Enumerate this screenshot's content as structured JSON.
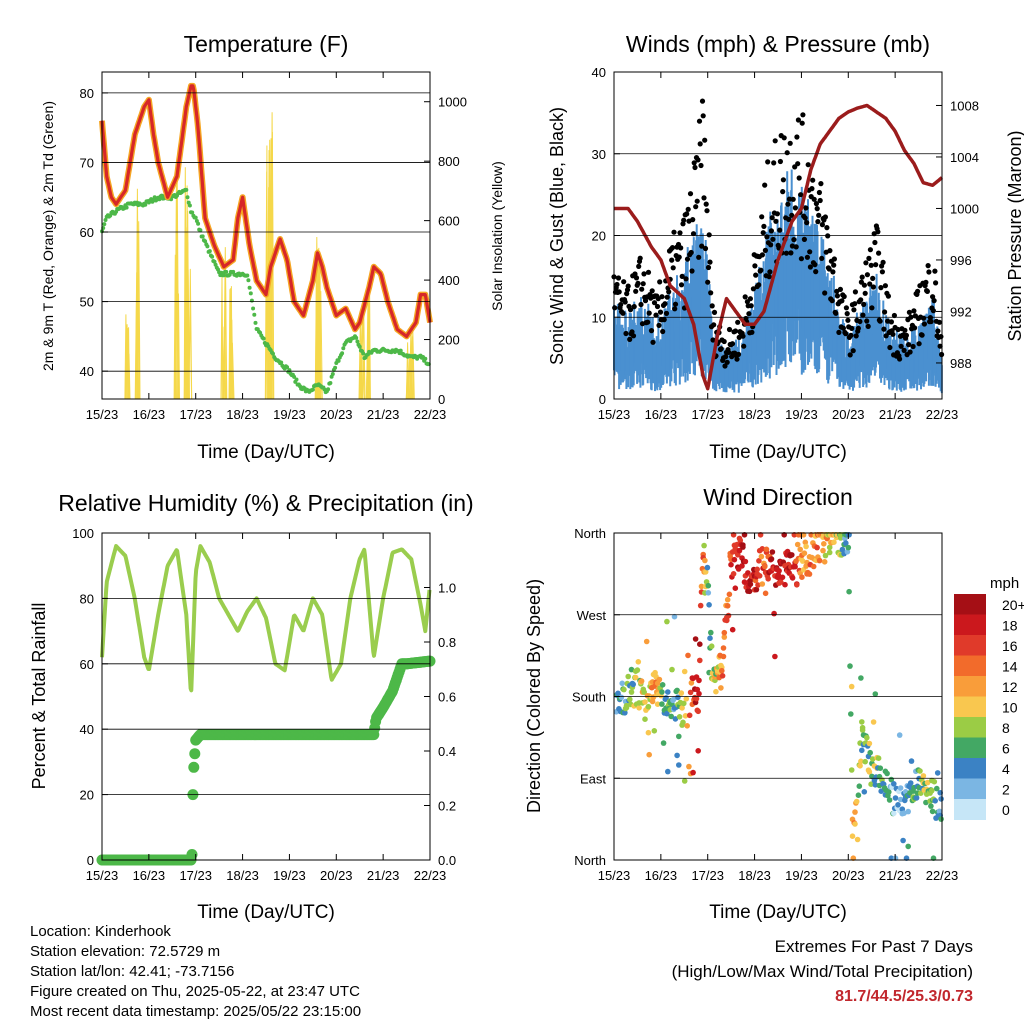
{
  "panels": {
    "temperature": {
      "title": "Temperature (F)",
      "ylabel_left": "2m & 9m T (Red, Orange) & 2m Td (Green)",
      "ylabel_right": "Solar Insolation (Yellow)",
      "xlabel": "Time (Day/UTC)"
    },
    "winds": {
      "title": "Winds (mph) & Pressure (mb)",
      "ylabel_left": "Sonic Wind & Gust (Blue, Black)",
      "ylabel_right": "Station Pressure (Maroon)",
      "xlabel": "Time (Day/UTC)"
    },
    "humidity": {
      "title": "Relative Humidity (%) & Precipitation (in)",
      "ylabel_left": "Percent & Total Rainfall",
      "xlabel": "Time (Day/UTC)"
    },
    "direction": {
      "title": "Wind Direction",
      "ylabel_left": "Direction (Colored By Speed)",
      "xlabel": "Time (Day/UTC)",
      "colorbar_title": "mph"
    }
  },
  "info": {
    "location": "Location: Kinderhook",
    "elevation": "Station elevation: 72.5729 m",
    "latlon": "Station lat/lon: 42.41; -73.7156",
    "created": "Figure created on Thu, 2025-05-22, at 23:47 UTC",
    "latest": "Most recent data timestamp: 2025/05/22 23:15:00"
  },
  "extremes": {
    "line1": "Extremes For Past 7 Days",
    "line2": "(High/Low/Max Wind/Total Precipitation)",
    "values": "81.7/44.5/25.3/0.73"
  },
  "colors": {
    "temp_2m": "#d62728",
    "temp_9m": "#f5a623",
    "dewpoint": "#4db848",
    "solar": "#f5d84a",
    "wind": "#4a90d0",
    "gust": "#000000",
    "pressure": "#9b1c1c",
    "rh": "#9acd4e",
    "precip": "#4db848"
  },
  "chart_data": [
    {
      "id": "temperature",
      "type": "line",
      "title": "Temperature (F)",
      "xlabel": "Time (Day/UTC)",
      "x_ticks": [
        "15/23",
        "16/23",
        "17/23",
        "18/23",
        "19/23",
        "20/23",
        "21/23",
        "22/23"
      ],
      "xlim": [
        0,
        7
      ],
      "ylim_left": [
        36,
        83
      ],
      "yticks_left": [
        40,
        50,
        60,
        70,
        80
      ],
      "ylim_right": [
        0,
        1100
      ],
      "yticks_right": [
        0,
        200,
        400,
        600,
        800,
        1000
      ],
      "grid": true,
      "series": [
        {
          "name": "2m T",
          "axis": "left",
          "x": [
            0,
            0.1,
            0.2,
            0.3,
            0.5,
            0.7,
            0.9,
            1.0,
            1.1,
            1.2,
            1.4,
            1.6,
            1.8,
            1.9,
            1.95,
            2.05,
            2.2,
            2.4,
            2.6,
            2.8,
            2.9,
            3.0,
            3.15,
            3.3,
            3.5,
            3.6,
            3.8,
            3.95,
            4.1,
            4.3,
            4.5,
            4.6,
            4.7,
            4.8,
            5.0,
            5.2,
            5.4,
            5.5,
            5.7,
            5.8,
            5.95,
            6.1,
            6.3,
            6.5,
            6.7,
            6.8,
            6.9,
            7.0
          ],
          "values": [
            76,
            68,
            65,
            64,
            66,
            74,
            78,
            79,
            74,
            70,
            65,
            68,
            78,
            81,
            81,
            75,
            62,
            58,
            55,
            56,
            62,
            65,
            58,
            53,
            51,
            55,
            59,
            56,
            50,
            48,
            53,
            57,
            55,
            52,
            48,
            49,
            46,
            47,
            52,
            55,
            54,
            50,
            46,
            45,
            47,
            51,
            51,
            47
          ]
        },
        {
          "name": "Td",
          "axis": "left",
          "x": [
            0,
            0.1,
            0.3,
            0.6,
            0.9,
            1.2,
            1.5,
            1.8,
            1.9,
            2.0,
            2.1,
            2.3,
            2.5,
            2.8,
            3.1,
            3.3,
            3.5,
            3.7,
            4.0,
            4.2,
            4.4,
            4.6,
            4.8,
            5.0,
            5.2,
            5.4,
            5.6,
            5.8,
            6.0,
            6.3,
            6.6,
            6.8,
            7.0
          ],
          "values": [
            60,
            62,
            63,
            64,
            64,
            65,
            65,
            66,
            63,
            62,
            60,
            57,
            54,
            54,
            54,
            46,
            44,
            42,
            40,
            38,
            37,
            38,
            37,
            41,
            44,
            45,
            42,
            43,
            43,
            43,
            42,
            42,
            41
          ]
        },
        {
          "name": "Solar",
          "axis": "right",
          "type": "peaks",
          "peak_x": [
            0.55,
            0.75,
            1.6,
            1.8,
            1.85,
            2.6,
            2.75,
            3.55,
            3.6,
            4.6,
            4.65,
            5.55,
            5.7,
            6.55,
            6.6
          ],
          "peak_values": [
            300,
            750,
            920,
            830,
            720,
            550,
            400,
            900,
            1060,
            550,
            620,
            350,
            420,
            200,
            270
          ]
        }
      ]
    },
    {
      "id": "winds",
      "type": "scatter",
      "title": "Winds (mph) & Pressure (mb)",
      "xlabel": "Time (Day/UTC)",
      "x_ticks": [
        "15/23",
        "16/23",
        "17/23",
        "18/23",
        "19/23",
        "20/23",
        "21/23",
        "22/23"
      ],
      "xlim": [
        0,
        7
      ],
      "ylim_left": [
        0,
        40
      ],
      "yticks_left": [
        0,
        10,
        20,
        30,
        40
      ],
      "ylim_right": [
        985.2,
        1010.6
      ],
      "yticks_right": [
        988,
        992,
        996,
        1000,
        1004,
        1008
      ],
      "grid": true,
      "series": [
        {
          "name": "Wind",
          "x": [
            0,
            0.3,
            0.6,
            0.9,
            1.2,
            1.5,
            1.8,
            1.9,
            2.1,
            2.4,
            2.7,
            3.0,
            3.3,
            3.6,
            3.9,
            4.2,
            4.5,
            4.8,
            5.0,
            5.3,
            5.6,
            5.9,
            6.2,
            6.5,
            6.8,
            7.0
          ],
          "values": [
            8,
            7,
            9,
            6,
            10,
            12,
            17,
            18,
            6,
            4,
            5,
            10,
            16,
            20,
            21,
            18,
            14,
            8,
            5,
            8,
            11,
            6,
            5,
            7,
            10,
            3
          ]
        },
        {
          "name": "Gust",
          "x": [
            0,
            0.3,
            0.6,
            0.9,
            1.2,
            1.5,
            1.8,
            1.9,
            2.1,
            2.4,
            2.7,
            3.0,
            3.3,
            3.6,
            3.9,
            4.2,
            4.5,
            4.8,
            5.0,
            5.3,
            5.6,
            5.9,
            6.2,
            6.5,
            6.8,
            7.0
          ],
          "values": [
            14,
            12,
            16,
            11,
            17,
            20,
            28,
            35,
            10,
            7,
            9,
            16,
            26,
            30,
            32,
            28,
            22,
            14,
            9,
            14,
            19,
            10,
            8,
            12,
            17,
            6
          ]
        },
        {
          "name": "Pressure",
          "type": "line",
          "x": [
            0,
            0.3,
            0.5,
            0.8,
            1.0,
            1.2,
            1.5,
            1.7,
            1.9,
            2.0,
            2.2,
            2.4,
            2.6,
            2.8,
            3.0,
            3.2,
            3.5,
            3.8,
            4.0,
            4.2,
            4.4,
            4.6,
            4.8,
            5.0,
            5.2,
            5.4,
            5.6,
            5.8,
            6.0,
            6.2,
            6.4,
            6.6,
            6.8,
            7.0
          ],
          "values": [
            1000,
            1000,
            999,
            997,
            996,
            994,
            993,
            991,
            987,
            986,
            990,
            993,
            992,
            991,
            991,
            992,
            996,
            999,
            1000,
            1003,
            1005,
            1006,
            1007,
            1007.5,
            1007.8,
            1008,
            1007.5,
            1007,
            1006,
            1004.5,
            1003.5,
            1002,
            1001.8,
            1002.4
          ]
        }
      ]
    },
    {
      "id": "humidity",
      "type": "line",
      "title": "Relative Humidity (%) & Precipitation (in)",
      "xlabel": "Time (Day/UTC)",
      "x_ticks": [
        "15/23",
        "16/23",
        "17/23",
        "18/23",
        "19/23",
        "20/23",
        "21/23",
        "22/23"
      ],
      "xlim": [
        0,
        7
      ],
      "ylim_left": [
        0,
        100
      ],
      "yticks_left": [
        0,
        20,
        40,
        60,
        80,
        100
      ],
      "ylim_right": [
        0,
        1.2
      ],
      "yticks_right": [
        0.0,
        0.2,
        0.4,
        0.6,
        0.8,
        1.0
      ],
      "grid": true,
      "series": [
        {
          "name": "RH",
          "axis": "left",
          "x": [
            0,
            0.1,
            0.3,
            0.5,
            0.7,
            0.9,
            1.0,
            1.2,
            1.4,
            1.6,
            1.8,
            1.9,
            2.0,
            2.1,
            2.3,
            2.5,
            2.7,
            2.9,
            3.1,
            3.3,
            3.5,
            3.7,
            3.9,
            4.1,
            4.3,
            4.5,
            4.7,
            4.9,
            5.1,
            5.3,
            5.5,
            5.6,
            5.8,
            6.0,
            6.2,
            6.4,
            6.6,
            6.8,
            6.9,
            7.0
          ],
          "values": [
            62,
            85,
            96,
            93,
            80,
            62,
            58,
            75,
            90,
            95,
            75,
            50,
            88,
            96,
            91,
            80,
            75,
            70,
            76,
            80,
            74,
            60,
            58,
            75,
            70,
            80,
            75,
            55,
            60,
            80,
            92,
            95,
            62,
            80,
            94,
            95,
            92,
            78,
            70,
            84
          ]
        },
        {
          "name": "Precipitation",
          "axis": "right",
          "x": [
            0,
            1.9,
            1.92,
            1.94,
            1.96,
            2.0,
            2.1,
            3.0,
            4.0,
            5.0,
            5.8,
            5.85,
            6.0,
            6.2,
            6.4,
            6.5,
            7.0
          ],
          "values": [
            0,
            0,
            0.02,
            0.24,
            0.34,
            0.44,
            0.46,
            0.46,
            0.46,
            0.46,
            0.46,
            0.52,
            0.56,
            0.62,
            0.72,
            0.72,
            0.73
          ]
        }
      ]
    },
    {
      "id": "direction",
      "type": "scatter",
      "title": "Wind Direction",
      "xlabel": "Time (Day/UTC)",
      "x_ticks": [
        "15/23",
        "16/23",
        "17/23",
        "18/23",
        "19/23",
        "20/23",
        "21/23",
        "22/23"
      ],
      "xlim": [
        0,
        7
      ],
      "ylim": [
        0,
        360
      ],
      "yticks": [
        0,
        90,
        180,
        270,
        360
      ],
      "ytick_labels": [
        "North",
        "East",
        "South",
        "West",
        "North"
      ],
      "grid": true,
      "colorbar": {
        "title": "mph",
        "labels": [
          "20+",
          "18",
          "16",
          "14",
          "12",
          "10",
          "8",
          "6",
          "4",
          "2",
          "0"
        ],
        "colors": [
          "#a50f15",
          "#cb181d",
          "#e03a2a",
          "#f26b2b",
          "#f99d3a",
          "#f9c74f",
          "#9bcc45",
          "#43a864",
          "#3b82c4",
          "#7bb6e3",
          "#c6e6f7"
        ]
      },
      "series": [
        {
          "name": "Direction",
          "x": [
            0.1,
            0.3,
            0.5,
            0.7,
            0.9,
            1.1,
            1.3,
            1.5,
            1.7,
            1.8,
            1.9,
            2.0,
            2.1,
            2.3,
            2.5,
            2.7,
            2.9,
            3.0,
            3.1,
            3.3,
            3.5,
            3.7,
            3.9,
            4.0,
            4.2,
            4.4,
            4.6,
            4.8,
            5.0,
            5.1,
            5.3,
            5.5,
            5.7,
            5.9,
            6.1,
            6.3,
            6.5,
            6.7,
            6.9
          ],
          "values": [
            175,
            185,
            190,
            170,
            195,
            180,
            175,
            160,
            185,
            180,
            345,
            300,
            200,
            210,
            330,
            340,
            305,
            310,
            320,
            330,
            315,
            320,
            320,
            330,
            335,
            350,
            355,
            355,
            355,
            10,
            140,
            100,
            90,
            70,
            60,
            70,
            90,
            80,
            60
          ],
          "speeds": [
            4,
            6,
            8,
            10,
            12,
            6,
            4,
            10,
            16,
            18,
            14,
            4,
            8,
            12,
            16,
            18,
            20,
            18,
            14,
            16,
            20,
            18,
            16,
            12,
            14,
            12,
            10,
            8,
            4,
            12,
            6,
            8,
            6,
            4,
            2,
            4,
            6,
            8,
            4
          ]
        }
      ]
    }
  ]
}
